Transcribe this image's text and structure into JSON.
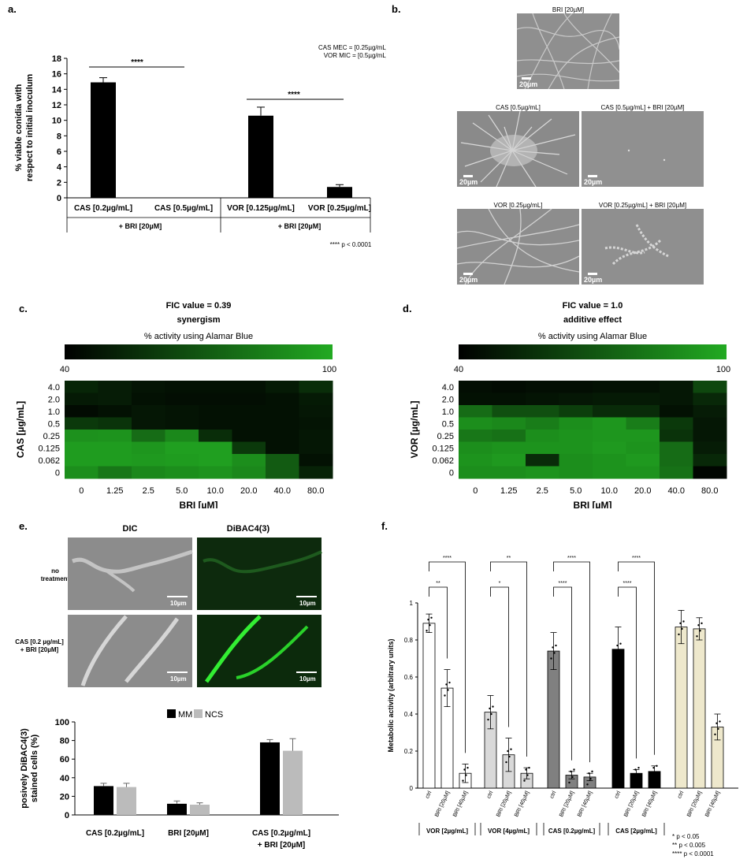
{
  "panels": {
    "a": "a.",
    "b": "b.",
    "c": "c.",
    "d": "d.",
    "e": "e.",
    "f": "f."
  },
  "panel_a": {
    "note_mec": "CAS MEC = [0.25µg/mL]",
    "note_mic": "VOR MIC = [0.5µg/mL]",
    "pvalue_note": "**** p < 0.0001",
    "group1_label": "+ BRI [20µM]",
    "group2_label": "+ BRI [20µM]",
    "sig1": "****",
    "sig2": "****"
  },
  "panel_b": {
    "captions": [
      "BRI [20µM]",
      "CAS [0.5µg/mL]",
      "CAS [0.5µg/mL] + BRI [20µM]",
      "VOR [0.25µg/mL]",
      "VOR [0.25µg/mL] + BRI [20µM]"
    ],
    "scale": "20µm"
  },
  "panel_c": {
    "title": "FIC value = 0.39",
    "subtitle": "synergism",
    "colorbar_label": "% activity using Alamar Blue",
    "colorbar_min": "40",
    "colorbar_max": "100"
  },
  "panel_d": {
    "title": "FIC value = 1.0",
    "subtitle": "additive effect",
    "colorbar_label": "% activity using Alamar Blue",
    "colorbar_min": "40",
    "colorbar_max": "100"
  },
  "panel_e": {
    "col_dic": "DIC",
    "col_dibac": "DiBAC4(3)",
    "row1_line1": "no",
    "row1_line2": "treatment",
    "row2_line1": "CAS [0.2 µg/mL]",
    "row2_line2": "+ BRI [20µM]",
    "scale": "10µm",
    "legend_mm": "MM",
    "legend_ncs": "NCS",
    "cat3_line2": "+ BRI [20µM]"
  },
  "panel_f": {
    "pvalue_1": "* p < 0.05",
    "pvalue_2": "** p < 0.005",
    "pvalue_3": "**** p < 0.0001"
  },
  "chart_data": [
    {
      "id": "a",
      "type": "bar",
      "ylabel": "% viable conidia with respect to initial inoculum",
      "ylim": [
        0,
        18
      ],
      "yticks": [
        0,
        2,
        4,
        6,
        8,
        10,
        12,
        14,
        16,
        18
      ],
      "categories": [
        "CAS [0.2µg/mL]",
        "CAS [0.5µg/mL]",
        "VOR [0.125µg/mL]",
        "VOR [0.25µg/mL]"
      ],
      "values": [
        14.9,
        0,
        10.6,
        1.4
      ],
      "errors": [
        0.6,
        0,
        1.1,
        0.3
      ],
      "color": "#000000"
    },
    {
      "id": "c",
      "type": "heatmap",
      "ylabel": "CAS [µg/mL]",
      "xlabel": "BRI [µM]",
      "x": [
        "0",
        "1.25",
        "2.5",
        "5.0",
        "10.0",
        "20.0",
        "40.0",
        "80.0"
      ],
      "y": [
        "4.0",
        "2.0",
        "1.0",
        "0.5",
        "0.25",
        "0.125",
        "0.062",
        "0"
      ],
      "values": [
        [
          53,
          50,
          47,
          46,
          46,
          46,
          49,
          56
        ],
        [
          49,
          50,
          46,
          45,
          45,
          45,
          46,
          49
        ],
        [
          44,
          46,
          48,
          47,
          46,
          46,
          46,
          48
        ],
        [
          60,
          58,
          48,
          47,
          46,
          46,
          46,
          47
        ],
        [
          91,
          92,
          78,
          88,
          56,
          46,
          46,
          48
        ],
        [
          95,
          95,
          93,
          96,
          96,
          60,
          46,
          48
        ],
        [
          95,
          95,
          94,
          95,
          96,
          90,
          72,
          46
        ],
        [
          90,
          82,
          88,
          90,
          92,
          88,
          72,
          52
        ]
      ],
      "colorscale": [
        "#000000",
        "#22aa22"
      ]
    },
    {
      "id": "d",
      "type": "heatmap",
      "ylabel": "VOR [µg/mL]",
      "xlabel": "BRI [µM]",
      "x": [
        "0",
        "1.25",
        "2.5",
        "5.0",
        "10.0",
        "20.0",
        "40.0",
        "80.0"
      ],
      "y": [
        "4.0",
        "2.0",
        "1.0",
        "0.5",
        "0.25",
        "0.125",
        "0.062",
        "0"
      ],
      "values": [
        [
          45,
          44,
          45,
          45,
          46,
          46,
          48,
          65
        ],
        [
          46,
          46,
          47,
          48,
          49,
          49,
          48,
          54
        ],
        [
          78,
          68,
          68,
          62,
          55,
          55,
          46,
          50
        ],
        [
          90,
          88,
          84,
          90,
          93,
          84,
          60,
          48
        ],
        [
          82,
          80,
          90,
          92,
          93,
          93,
          58,
          48
        ],
        [
          90,
          92,
          92,
          92,
          94,
          92,
          78,
          50
        ],
        [
          92,
          94,
          55,
          90,
          92,
          94,
          78,
          54
        ],
        [
          90,
          90,
          92,
          90,
          92,
          92,
          80,
          42
        ]
      ],
      "colorscale": [
        "#000000",
        "#22aa22"
      ]
    },
    {
      "id": "e-bar",
      "type": "bar",
      "ylabel": "posively DiBAC4(3) stained cells (%)",
      "ylim": [
        0,
        100
      ],
      "yticks": [
        0,
        20,
        40,
        60,
        80,
        100
      ],
      "categories": [
        "CAS [0.2µg/mL]",
        "BRI [20µM]",
        "CAS [0.2µg/mL]"
      ],
      "series": [
        {
          "name": "MM",
          "values": [
            31,
            12,
            78
          ],
          "errors": [
            3,
            3,
            3
          ],
          "color": "#000000"
        },
        {
          "name": "NCS",
          "values": [
            30,
            11,
            69
          ],
          "errors": [
            4,
            2,
            13
          ],
          "color": "#bbbbbb"
        }
      ]
    },
    {
      "id": "f",
      "type": "bar",
      "ylabel": "Metabolic activity (arbitrary units)",
      "ylim": [
        0,
        1
      ],
      "yticks": [
        0,
        0.2,
        0.4,
        0.6,
        0.8,
        1
      ],
      "groups": [
        {
          "name": "VOR [2µg/mL]",
          "color": "#ffffff",
          "categories": [
            "ctrl",
            "BRI [20µM]",
            "BRI [40µM]"
          ],
          "values": [
            0.89,
            0.54,
            0.08
          ],
          "errors": [
            0.05,
            0.1,
            0.05
          ],
          "sig": [
            "**",
            "****"
          ]
        },
        {
          "name": "VOR [4µg/mL]",
          "color": "#d9d9d9",
          "categories": [
            "ctrl",
            "BRI [20µM]",
            "BRI [40µM]"
          ],
          "values": [
            0.41,
            0.18,
            0.08
          ],
          "errors": [
            0.09,
            0.09,
            0.03
          ],
          "sig": [
            "*",
            "**"
          ]
        },
        {
          "name": "CAS [0.2µg/mL]",
          "color": "#808080",
          "categories": [
            "ctrl",
            "BRI [20µM]",
            "BRI [40µM]"
          ],
          "values": [
            0.74,
            0.07,
            0.06
          ],
          "errors": [
            0.1,
            0.02,
            0.02
          ],
          "sig": [
            "****",
            "****"
          ]
        },
        {
          "name": "CAS [2µg/mL]",
          "color": "#000000",
          "categories": [
            "ctrl",
            "BRI [20µM]",
            "BRI [40µM]"
          ],
          "values": [
            0.75,
            0.08,
            0.09
          ],
          "errors": [
            0.12,
            0.02,
            0.03
          ],
          "sig": [
            "****",
            "****"
          ]
        },
        {
          "name": "",
          "color": "#eee8cc",
          "categories": [
            "ctrl",
            "BRI [20µM]",
            "BRI [40µM]"
          ],
          "values": [
            0.87,
            0.86,
            0.33
          ],
          "errors": [
            0.09,
            0.06,
            0.07
          ],
          "sig": []
        }
      ]
    }
  ]
}
